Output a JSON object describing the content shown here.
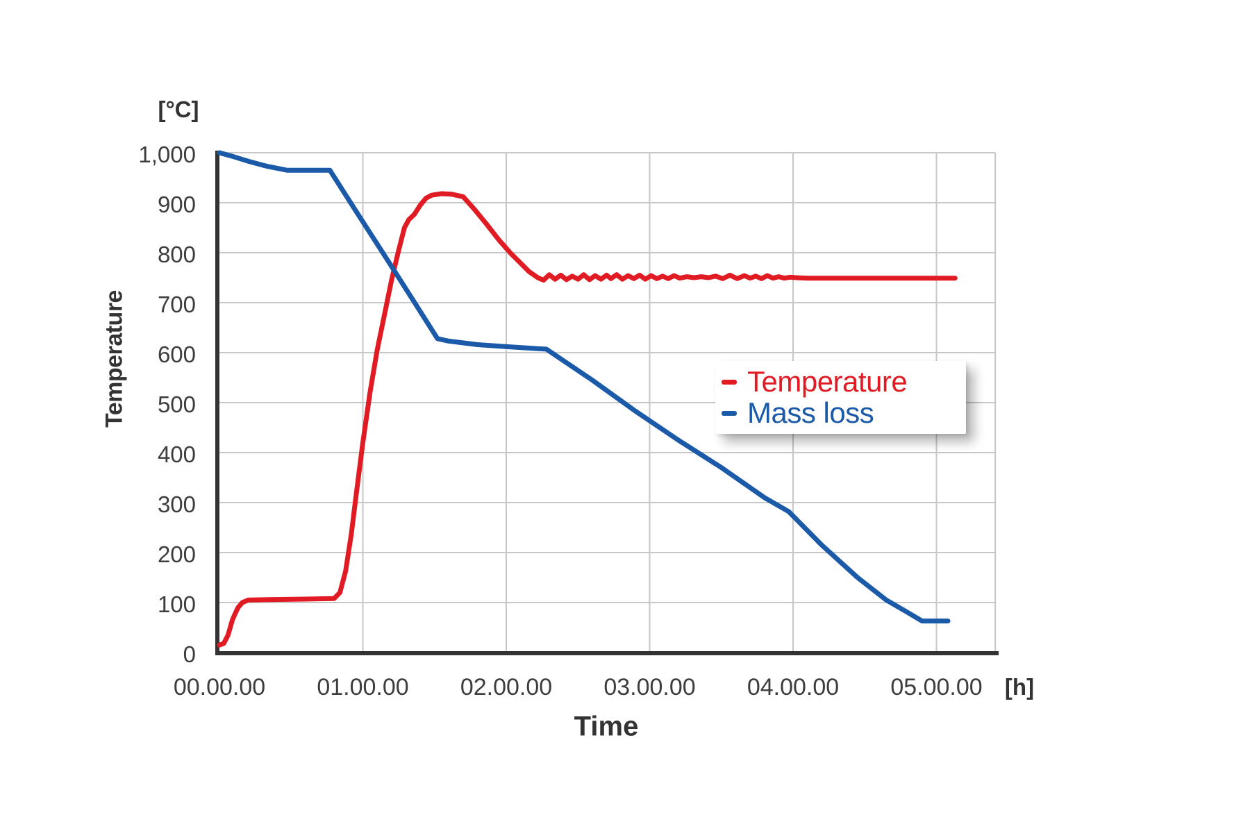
{
  "chart_data": {
    "type": "line",
    "title": "",
    "xlabel": "Time",
    "x_unit": "[h]",
    "ylabel": "Temperature",
    "y_unit": "[°C]",
    "xlim": [
      0,
      5.41
    ],
    "ylim": [
      0,
      1000
    ],
    "xticks": [
      0,
      1,
      2,
      3,
      4,
      5
    ],
    "xtick_labels": [
      "00.00.00",
      "01.00.00",
      "02.00.00",
      "03.00.00",
      "04.00.00",
      "05.00.00"
    ],
    "yticks": [
      0,
      100,
      200,
      300,
      400,
      500,
      600,
      700,
      800,
      900,
      1000
    ],
    "ytick_labels": [
      "0",
      "100",
      "200",
      "300",
      "400",
      "500",
      "600",
      "700",
      "800",
      "900",
      "1,000"
    ],
    "grid": "on",
    "grid_color": "#c7c7c7",
    "axis_color": "#333333",
    "tick_color": "#3d3d3d",
    "legend_position": "center-right",
    "series": [
      {
        "name": "Temperature",
        "color": "#e11b24",
        "line_width": 7,
        "points": [
          [
            0,
            15
          ],
          [
            0.03,
            18
          ],
          [
            0.06,
            35
          ],
          [
            0.09,
            65
          ],
          [
            0.11,
            78
          ],
          [
            0.13,
            90
          ],
          [
            0.16,
            100
          ],
          [
            0.2,
            105
          ],
          [
            0.35,
            106
          ],
          [
            0.6,
            107
          ],
          [
            0.8,
            108
          ],
          [
            0.84,
            120
          ],
          [
            0.88,
            163
          ],
          [
            0.92,
            238
          ],
          [
            0.96,
            330
          ],
          [
            1,
            420
          ],
          [
            1.05,
            520
          ],
          [
            1.1,
            605
          ],
          [
            1.15,
            675
          ],
          [
            1.2,
            745
          ],
          [
            1.25,
            805
          ],
          [
            1.29,
            850
          ],
          [
            1.32,
            866
          ],
          [
            1.36,
            877
          ],
          [
            1.4,
            895
          ],
          [
            1.44,
            909
          ],
          [
            1.48,
            915
          ],
          [
            1.55,
            918
          ],
          [
            1.62,
            917
          ],
          [
            1.7,
            912
          ],
          [
            1.78,
            886
          ],
          [
            1.86,
            858
          ],
          [
            1.95,
            825
          ],
          [
            2.03,
            799
          ],
          [
            2.1,
            779
          ],
          [
            2.16,
            762
          ],
          [
            2.22,
            750
          ],
          [
            2.26,
            745
          ],
          [
            2.3,
            756
          ],
          [
            2.34,
            747
          ],
          [
            2.38,
            755
          ],
          [
            2.42,
            746
          ],
          [
            2.46,
            753
          ],
          [
            2.5,
            747
          ],
          [
            2.54,
            756
          ],
          [
            2.58,
            746
          ],
          [
            2.62,
            754
          ],
          [
            2.66,
            747
          ],
          [
            2.7,
            755
          ],
          [
            2.73,
            748
          ],
          [
            2.77,
            756
          ],
          [
            2.81,
            747
          ],
          [
            2.85,
            754
          ],
          [
            2.89,
            748
          ],
          [
            2.93,
            755
          ],
          [
            2.97,
            747
          ],
          [
            3.01,
            754
          ],
          [
            3.05,
            748
          ],
          [
            3.09,
            753
          ],
          [
            3.13,
            748
          ],
          [
            3.17,
            754
          ],
          [
            3.21,
            749
          ],
          [
            3.26,
            752
          ],
          [
            3.31,
            750
          ],
          [
            3.36,
            752
          ],
          [
            3.41,
            750
          ],
          [
            3.46,
            753
          ],
          [
            3.51,
            748
          ],
          [
            3.56,
            755
          ],
          [
            3.61,
            748
          ],
          [
            3.66,
            754
          ],
          [
            3.7,
            749
          ],
          [
            3.74,
            753
          ],
          [
            3.78,
            748
          ],
          [
            3.82,
            754
          ],
          [
            3.86,
            749
          ],
          [
            3.9,
            752
          ],
          [
            3.94,
            749
          ],
          [
            3.98,
            751
          ],
          [
            4.02,
            750
          ],
          [
            4.1,
            749
          ],
          [
            4.6,
            749
          ],
          [
            5.13,
            749
          ]
        ]
      },
      {
        "name": "Mass loss",
        "color": "#1a5aa8",
        "line_width": 7,
        "points": [
          [
            0,
            1000
          ],
          [
            0.1,
            992
          ],
          [
            0.2,
            983
          ],
          [
            0.33,
            973
          ],
          [
            0.47,
            965
          ],
          [
            0.77,
            965
          ],
          [
            0.95,
            884
          ],
          [
            1.15,
            795
          ],
          [
            1.35,
            705
          ],
          [
            1.52,
            628
          ],
          [
            1.6,
            623
          ],
          [
            1.8,
            616
          ],
          [
            2,
            612
          ],
          [
            2.28,
            607
          ],
          [
            2.6,
            545
          ],
          [
            2.9,
            483
          ],
          [
            3.2,
            425
          ],
          [
            3.5,
            370
          ],
          [
            3.8,
            310
          ],
          [
            3.97,
            282
          ],
          [
            4.2,
            215
          ],
          [
            4.45,
            150
          ],
          [
            4.65,
            105
          ],
          [
            4.8,
            80
          ],
          [
            4.9,
            63
          ],
          [
            5.08,
            63
          ]
        ]
      }
    ]
  }
}
